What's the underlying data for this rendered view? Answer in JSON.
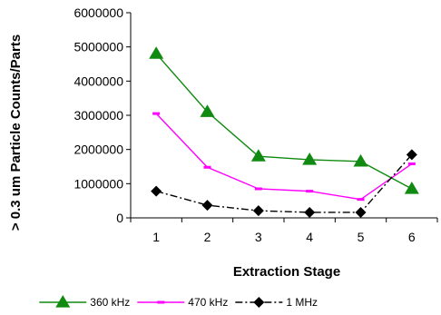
{
  "chart_data": {
    "type": "line",
    "title": "",
    "xlabel": "Extraction Stage",
    "ylabel": "> 0.3 um Particle Counts/Parts",
    "x": [
      1,
      2,
      3,
      4,
      5,
      6
    ],
    "x_tick_labels": [
      "1",
      "2",
      "3",
      "4",
      "5",
      "6"
    ],
    "ylim": [
      0,
      6000000
    ],
    "y_ticks": [
      0,
      1000000,
      2000000,
      3000000,
      4000000,
      5000000,
      6000000
    ],
    "y_tick_labels": [
      "0",
      "1000000",
      "2000000",
      "3000000",
      "4000000",
      "5000000",
      "6000000"
    ],
    "grid": false,
    "legend_position": "bottom",
    "series": [
      {
        "name": "360 kHz",
        "values": [
          4800000,
          3100000,
          1800000,
          1700000,
          1650000,
          850000
        ],
        "color": "#108a10",
        "marker": "triangle",
        "line_style": "solid"
      },
      {
        "name": "470 kHz",
        "values": [
          3050000,
          1480000,
          850000,
          780000,
          540000,
          1580000
        ],
        "color": "#ff00ff",
        "marker": "dash",
        "line_style": "solid"
      },
      {
        "name": "1 MHz",
        "values": [
          780000,
          370000,
          210000,
          160000,
          160000,
          1850000
        ],
        "color": "#000000",
        "marker": "diamond",
        "line_style": "dash-dot"
      }
    ]
  }
}
